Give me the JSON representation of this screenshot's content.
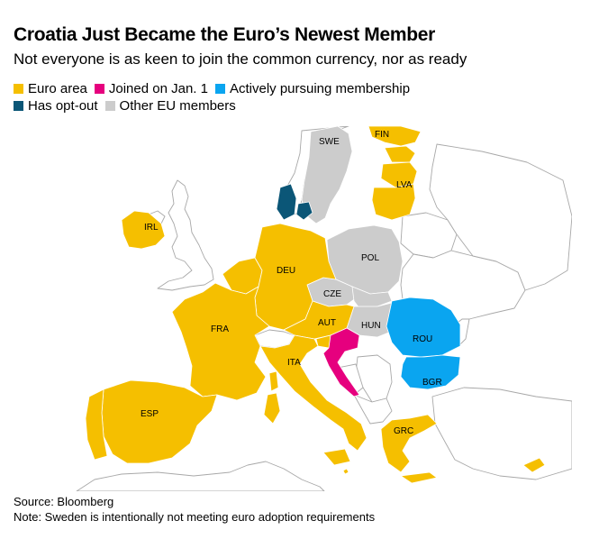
{
  "title": "Croatia Just Became the Euro’s Newest Member",
  "subtitle": "Not everyone is as keen to join the common currency, nor as ready",
  "legend": [
    {
      "label": "Euro area",
      "color": "#f5bf00"
    },
    {
      "label": "Joined on Jan. 1",
      "color": "#e6007e"
    },
    {
      "label": "Actively pursuing membership",
      "color": "#0aa5f0"
    },
    {
      "label": "Has opt-out",
      "color": "#0b5677"
    },
    {
      "label": "Other EU members",
      "color": "#cccccc"
    }
  ],
  "map_labels": {
    "swe": "SWE",
    "fin": "FIN",
    "lva": "LVA",
    "irl": "IRL",
    "deu": "DEU",
    "pol": "POL",
    "cze": "CZE",
    "aut": "AUT",
    "hun": "HUN",
    "fra": "FRA",
    "ita": "ITA",
    "rou": "ROU",
    "bgr": "BGR",
    "esp": "ESP",
    "grc": "GRC"
  },
  "colors": {
    "euro_area": "#f5bf00",
    "joined": "#e6007e",
    "pursuing": "#0aa5f0",
    "opt_out": "#0b5677",
    "other_eu": "#cccccc",
    "non_eu": "#ffffff",
    "border": "#9a9a9a"
  },
  "source": "Source: Bloomberg",
  "note": "Note: Sweden is intentionally not meeting euro adoption requirements"
}
